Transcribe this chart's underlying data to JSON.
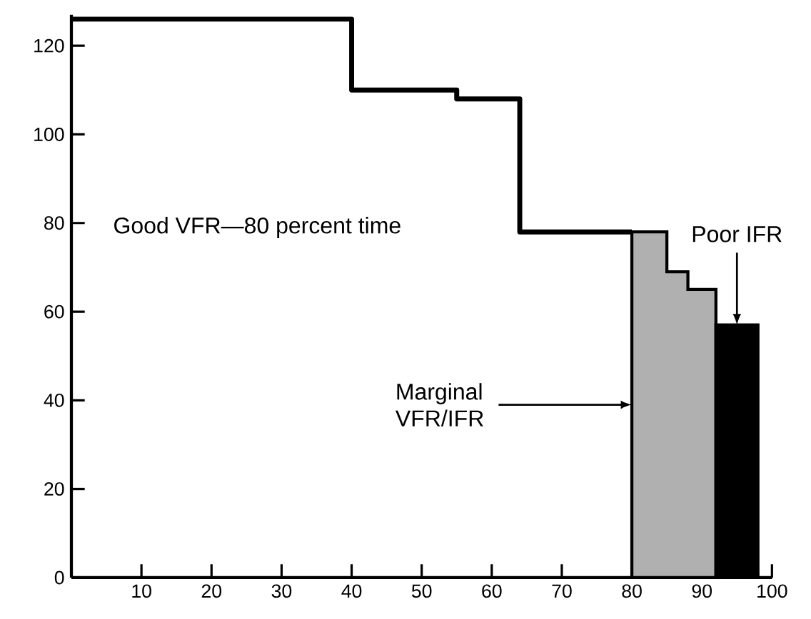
{
  "chart_data": {
    "type": "line",
    "series": [
      {
        "color": "#000000",
        "x": [
          0,
          40,
          40,
          55,
          55,
          64,
          64,
          80
        ],
        "values": [
          126,
          126,
          110,
          110,
          108,
          108,
          78,
          78
        ]
      },
      {
        "type": "area",
        "color": "#b0b0b0",
        "x": [
          80,
          85,
          85,
          88,
          88,
          92
        ],
        "values": [
          78,
          78,
          69,
          69,
          65,
          65
        ]
      },
      {
        "type": "area",
        "color": "#000000",
        "x": [
          92,
          98
        ],
        "values": [
          57,
          57
        ]
      }
    ],
    "xlim": [
      0,
      100
    ],
    "ylim": [
      0,
      127
    ],
    "xticks": [
      10,
      20,
      30,
      40,
      50,
      60,
      70,
      80,
      90,
      100
    ],
    "yticks": [
      0,
      20,
      40,
      60,
      80,
      100,
      120
    ],
    "annotations": [
      "Good VFR—80 percent time",
      {
        "text": "Marginal VFR/IFR",
        "x": 80,
        "y": 39
      },
      {
        "text": "Poor IFR",
        "x": 95,
        "y": 57
      }
    ]
  }
}
